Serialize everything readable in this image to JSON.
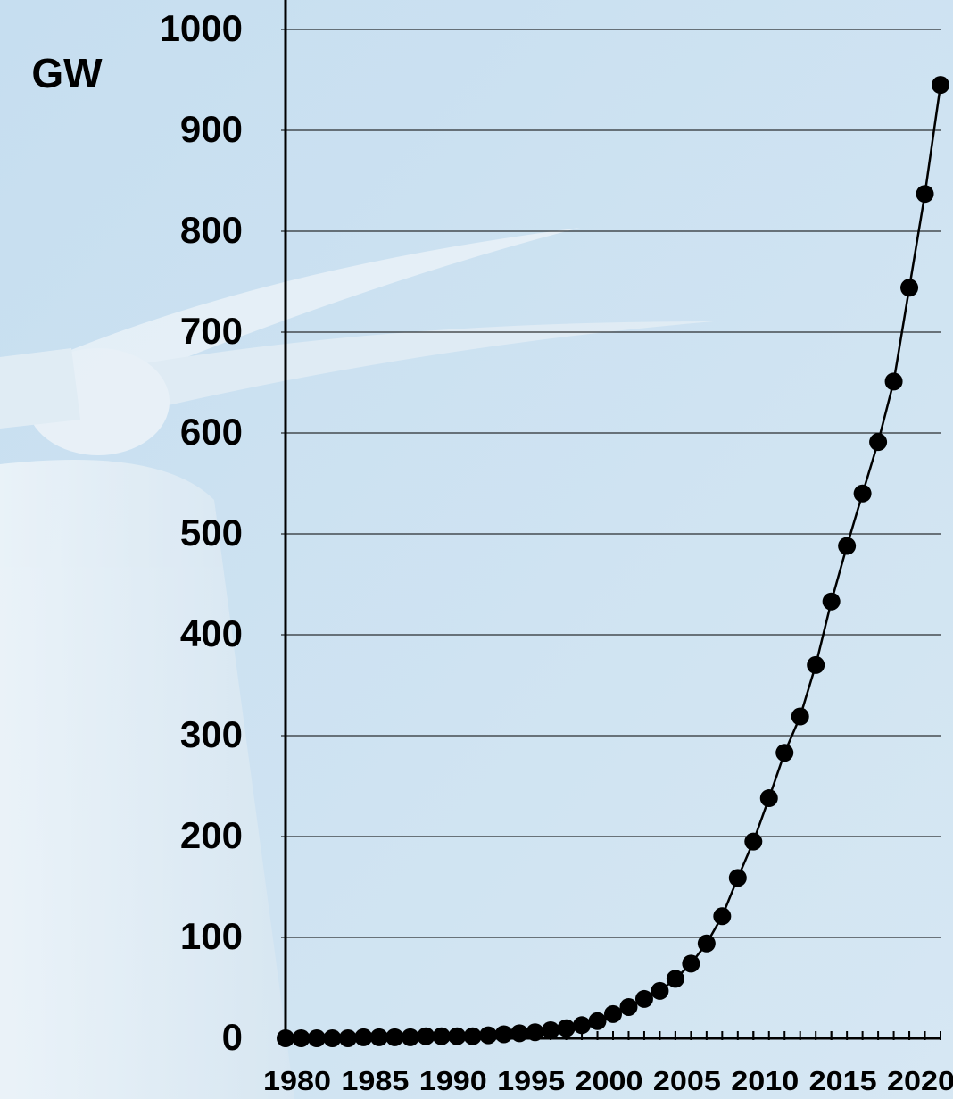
{
  "chart_data": {
    "type": "line",
    "y_label": "GW",
    "x": [
      1980,
      1981,
      1982,
      1983,
      1984,
      1985,
      1986,
      1987,
      1988,
      1989,
      1990,
      1991,
      1992,
      1993,
      1994,
      1995,
      1996,
      1997,
      1998,
      1999,
      2000,
      2001,
      2002,
      2003,
      2004,
      2005,
      2006,
      2007,
      2008,
      2009,
      2010,
      2011,
      2012,
      2013,
      2014,
      2015,
      2016,
      2017,
      2018,
      2019,
      2020,
      2021,
      2022
    ],
    "series": [
      {
        "color": "#000000",
        "values": [
          0,
          0,
          0,
          0,
          0,
          1,
          1,
          1,
          1,
          2,
          2,
          2,
          2,
          3,
          4,
          5,
          6,
          8,
          10,
          13,
          17,
          24,
          31,
          39,
          47,
          59,
          74,
          94,
          121,
          159,
          195,
          238,
          283,
          319,
          370,
          433,
          488,
          540,
          591,
          651,
          744,
          837,
          945
        ]
      }
    ],
    "xlim": [
      1980,
      2022
    ],
    "xticks": [
      1980,
      1985,
      1990,
      1995,
      2000,
      2005,
      2010,
      2015,
      2020
    ],
    "ylim": [
      0,
      1000
    ],
    "yticks": [
      0,
      100,
      200,
      300,
      400,
      500,
      600,
      700,
      800,
      900,
      1000
    ],
    "grid": true
  }
}
